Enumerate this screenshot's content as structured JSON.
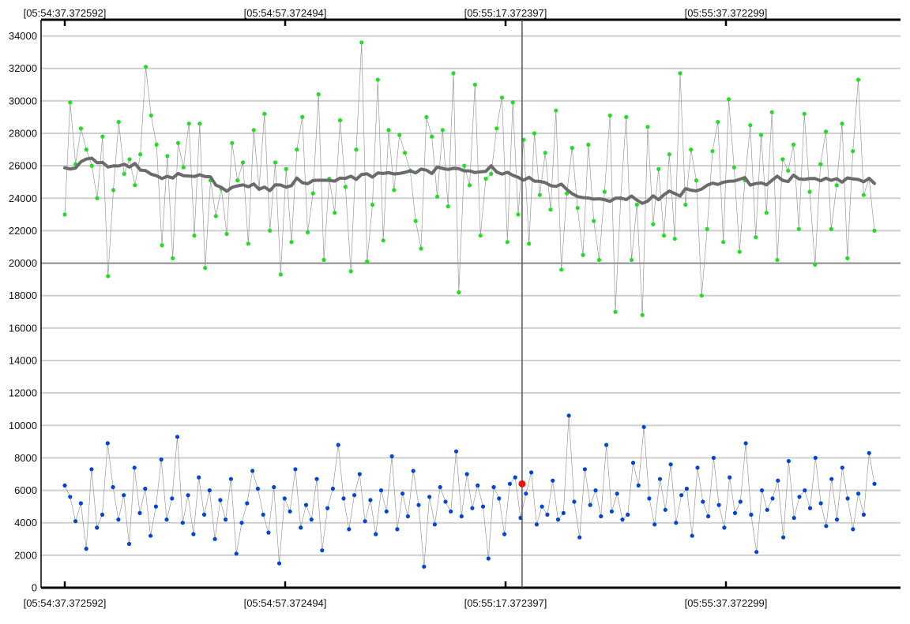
{
  "chart_data": {
    "type": "scatter",
    "title": "",
    "xlabel": "",
    "ylabel": "",
    "ylim": [
      0,
      35000
    ],
    "y_ticks": [
      "0",
      "2000",
      "4000",
      "6000",
      "8000",
      "10000",
      "12000",
      "14000",
      "16000",
      "18000",
      "20000",
      "22000",
      "24000",
      "26000",
      "28000",
      "30000",
      "32000",
      "34000"
    ],
    "x_tick_labels": [
      "[05:54:37.372592]",
      "[05:54:57.372494]",
      "[05:55:17.372397]",
      "[05:55:37.372299]"
    ],
    "x_range_seconds": [
      0,
      75
    ],
    "reference_line": 20000,
    "cursor_x_seconds": 41.5,
    "selected_point": {
      "x_seconds": 41.5,
      "y": 6400
    },
    "colors": {
      "upper_series": "#22dd22",
      "lower_series": "#0044dd",
      "trend": "#6b6b6b",
      "selected": "#ee1111"
    },
    "series": [
      {
        "values": [
          23000,
          29900,
          26100,
          28300,
          27000,
          26000,
          24000,
          27800,
          19200,
          24500,
          28700,
          25500,
          26400,
          24800,
          26700,
          32100,
          29100,
          27300,
          21100,
          26600,
          20300,
          27400,
          25900,
          28600,
          21700,
          28600,
          19700,
          25100,
          22900,
          24600,
          21800,
          27400,
          25100,
          26200,
          21200,
          28200,
          24600,
          29200,
          22000,
          26200,
          19300,
          25800,
          21300,
          27000,
          29000,
          21900,
          24300,
          30400,
          20200,
          25200,
          23100,
          28800,
          24700,
          19500,
          27000,
          33600,
          20100,
          23600,
          31300,
          21400,
          28200,
          24500,
          27900,
          26800,
          25700,
          22600,
          20900,
          29000,
          27800,
          24100,
          28200,
          23500,
          31700,
          18200,
          26000,
          24800,
          31000,
          21700,
          25200,
          25500,
          28300,
          30200,
          21300,
          29900,
          23000,
          27600,
          21200,
          28000,
          24200,
          26800,
          23300,
          29400,
          19600,
          24300,
          27100,
          23400,
          20500,
          27300,
          22600,
          20200,
          24400,
          29100,
          17000,
          24000,
          29000,
          20200,
          23600,
          16800,
          28400,
          22400,
          25800,
          21700,
          26700,
          21500,
          31700,
          23600,
          27000,
          25100,
          18000,
          22100,
          26900,
          28700,
          21300,
          30100,
          25900,
          20700,
          25100,
          28500,
          21600,
          27900,
          23100,
          29300,
          20200,
          26400,
          25700,
          27300,
          22100,
          29200,
          24400,
          19900,
          26100,
          28100,
          22100,
          24800,
          28600,
          20300,
          26900,
          31300,
          24200,
          25200,
          22000
        ]
      },
      {
        "values": [
          6300,
          5600,
          4100,
          5200,
          2400,
          7300,
          3700,
          4500,
          8900,
          6200,
          4200,
          5700,
          2700,
          7400,
          4600,
          6100,
          3200,
          5000,
          7900,
          4200,
          5500,
          9300,
          4000,
          5700,
          3300,
          6800,
          4500,
          6000,
          3000,
          5400,
          4200,
          6700,
          2100,
          4000,
          5200,
          7200,
          6100,
          4500,
          3400,
          6200,
          1500,
          5500,
          4700,
          7300,
          3700,
          5100,
          4200,
          6700,
          2300,
          4900,
          6100,
          8800,
          5500,
          3600,
          5700,
          7000,
          4100,
          5400,
          3300,
          6000,
          4700,
          8100,
          3600,
          5800,
          4400,
          7200,
          5100,
          1300,
          5600,
          3900,
          6200,
          5300,
          4700,
          8400,
          4400,
          7000,
          4900,
          6300,
          5000,
          1800,
          6200,
          5500,
          3300,
          6400,
          6800,
          4300,
          5800,
          7100,
          3900,
          5000,
          4500,
          6600,
          4200,
          4600,
          10600,
          5300,
          3100,
          7300,
          5100,
          6000,
          4400,
          8800,
          4700,
          5800,
          4200,
          4500,
          7700,
          6300,
          9900,
          5500,
          3900,
          6700,
          4800,
          7600,
          4000,
          5700,
          6100,
          3200,
          7400,
          5300,
          4400,
          8000,
          5100,
          3700,
          6800,
          4600,
          5300,
          8900,
          4500,
          2200,
          6000,
          4800,
          5500,
          6600,
          3100,
          7800,
          4300,
          5600,
          6000,
          4900,
          8000,
          5200,
          3800,
          6700,
          4200,
          7400,
          5500,
          3600,
          5800,
          4500,
          8300,
          6400
        ]
      }
    ]
  }
}
